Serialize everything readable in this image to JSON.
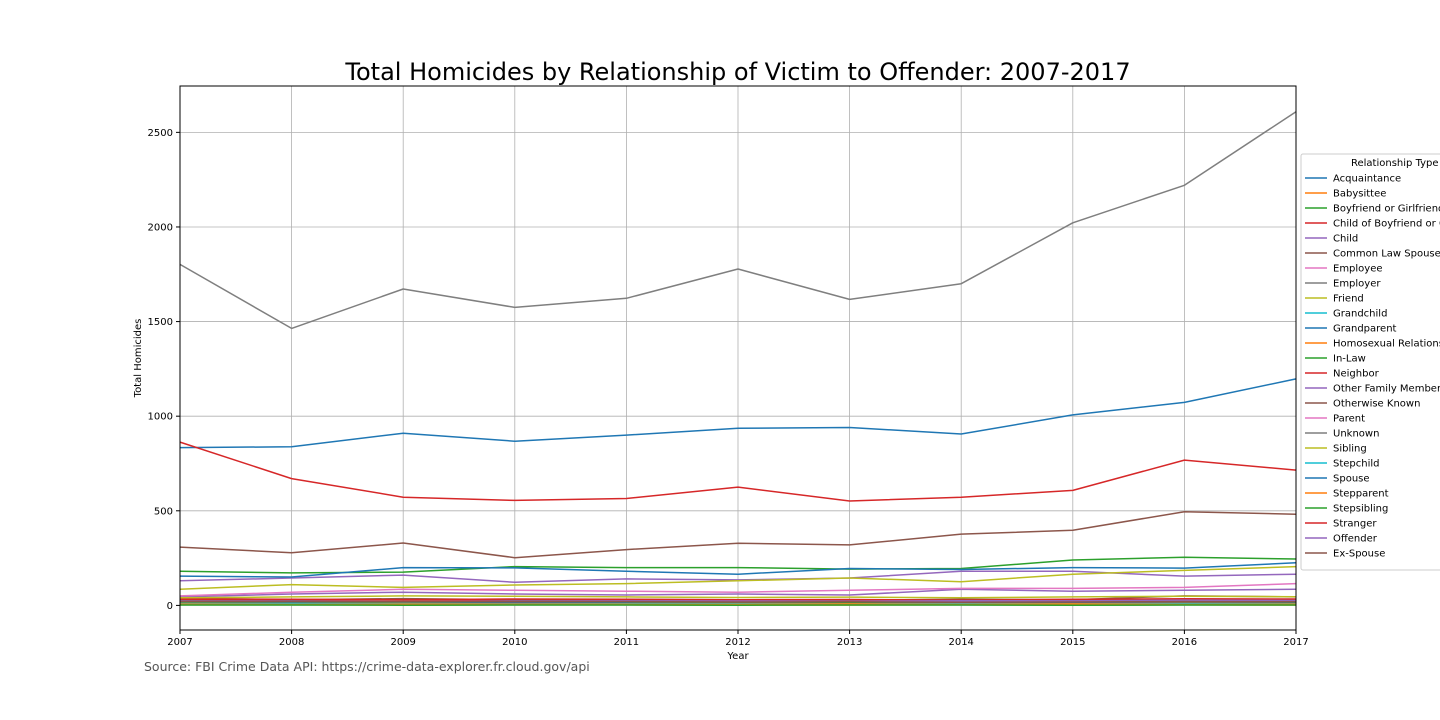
{
  "chart_data": {
    "type": "line",
    "title": "Total Homicides by Relationship of Victim to Offender: 2007-2017",
    "xlabel": "Year",
    "ylabel": "Total Homicides",
    "x": [
      2007,
      2008,
      2009,
      2010,
      2011,
      2012,
      2013,
      2014,
      2015,
      2016,
      2017
    ],
    "xticks": [
      "2007",
      "2008",
      "2009",
      "2010",
      "2011",
      "2012",
      "2013",
      "2014",
      "2015",
      "2016",
      "2017"
    ],
    "yticks": [
      "0",
      "500",
      "1000",
      "1500",
      "2000",
      "2500"
    ],
    "xlim": [
      2007,
      2017
    ],
    "ylim": [
      -130,
      2745
    ],
    "grid": true,
    "legend_title": "Relationship Type",
    "legend_position": "right",
    "series": [
      {
        "name": "Acquaintance",
        "color": "#1f77b4",
        "values": [
          834,
          838,
          910,
          868,
          900,
          936,
          940,
          906,
          1007,
          1073,
          1197
        ]
      },
      {
        "name": "Babysittee",
        "color": "#ff7f0e",
        "values": [
          3,
          4,
          2,
          3,
          3,
          2,
          2,
          3,
          2,
          3,
          2
        ]
      },
      {
        "name": "Boyfriend or Girlfriend",
        "color": "#2ca02c",
        "values": [
          180,
          172,
          176,
          205,
          200,
          200,
          192,
          195,
          240,
          255,
          245
        ]
      },
      {
        "name": "Child of Boyfriend or Girlfriend",
        "color": "#d62728",
        "values": [
          30,
          28,
          30,
          27,
          28,
          26,
          25,
          24,
          30,
          28,
          32
        ]
      },
      {
        "name": "Child",
        "color": "#9467bd",
        "values": [
          130,
          145,
          160,
          122,
          140,
          135,
          145,
          180,
          180,
          155,
          165
        ]
      },
      {
        "name": "Common Law Spouse",
        "color": "#8c564b",
        "values": [
          38,
          30,
          36,
          30,
          32,
          30,
          28,
          32,
          30,
          50,
          45
        ]
      },
      {
        "name": "Employee",
        "color": "#e377c2",
        "values": [
          5,
          4,
          4,
          3,
          4,
          4,
          3,
          4,
          5,
          6,
          4
        ]
      },
      {
        "name": "Employer",
        "color": "#7f7f7f",
        "values": [
          4,
          3,
          3,
          4,
          3,
          3,
          4,
          3,
          4,
          3,
          4
        ]
      },
      {
        "name": "Friend",
        "color": "#bcbd22",
        "values": [
          85,
          110,
          95,
          108,
          115,
          130,
          145,
          125,
          165,
          185,
          205
        ]
      },
      {
        "name": "Grandchild",
        "color": "#17becf",
        "values": [
          15,
          14,
          16,
          15,
          14,
          13,
          15,
          16,
          14,
          15,
          16
        ]
      },
      {
        "name": "Grandparent",
        "color": "#1f77b4",
        "values": [
          12,
          10,
          11,
          13,
          12,
          11,
          10,
          12,
          11,
          13,
          12
        ]
      },
      {
        "name": "Homosexual Relationship",
        "color": "#ff7f0e",
        "values": [
          10,
          9,
          10,
          8,
          9,
          10,
          9,
          8,
          9,
          10,
          9
        ]
      },
      {
        "name": "In-Law",
        "color": "#2ca02c",
        "values": [
          20,
          19,
          18,
          20,
          19,
          18,
          17,
          18,
          19,
          20,
          18
        ]
      },
      {
        "name": "Neighbor",
        "color": "#d62728",
        "values": [
          35,
          33,
          30,
          34,
          32,
          30,
          31,
          28,
          33,
          35,
          34
        ]
      },
      {
        "name": "Other Family Member",
        "color": "#9467bd",
        "values": [
          45,
          60,
          70,
          60,
          55,
          60,
          55,
          85,
          75,
          80,
          85
        ]
      },
      {
        "name": "Otherwise Known",
        "color": "#8c564b",
        "values": [
          308,
          278,
          330,
          252,
          295,
          328,
          320,
          377,
          397,
          495,
          482
        ]
      },
      {
        "name": "Parent",
        "color": "#e377c2",
        "values": [
          50,
          70,
          85,
          80,
          75,
          70,
          80,
          90,
          90,
          95,
          115
        ]
      },
      {
        "name": "Unknown",
        "color": "#7f7f7f",
        "values": [
          1802,
          1464,
          1672,
          1575,
          1623,
          1778,
          1617,
          1700,
          2022,
          2220,
          2609
        ]
      },
      {
        "name": "Sibling",
        "color": "#bcbd22",
        "values": [
          40,
          45,
          50,
          48,
          45,
          42,
          44,
          40,
          45,
          48,
          46
        ]
      },
      {
        "name": "Stepchild",
        "color": "#17becf",
        "values": [
          8,
          9,
          8,
          7,
          9,
          8,
          7,
          8,
          7,
          9,
          8
        ]
      },
      {
        "name": "Spouse",
        "color": "#1f77b4",
        "values": [
          155,
          150,
          200,
          198,
          180,
          165,
          195,
          190,
          200,
          197,
          225
        ]
      },
      {
        "name": "Stepparent",
        "color": "#ff7f0e",
        "values": [
          6,
          5,
          6,
          5,
          6,
          5,
          6,
          5,
          6,
          5,
          6
        ]
      },
      {
        "name": "Stepsibling",
        "color": "#2ca02c",
        "values": [
          2,
          2,
          1,
          2,
          2,
          1,
          2,
          2,
          1,
          2,
          2
        ]
      },
      {
        "name": "Stranger",
        "color": "#d62728",
        "values": [
          863,
          670,
          572,
          555,
          565,
          625,
          552,
          572,
          608,
          768,
          715
        ]
      },
      {
        "name": "Offender",
        "color": "#9467bd",
        "values": [
          25,
          22,
          20,
          22,
          24,
          23,
          22,
          25,
          24,
          28,
          26
        ]
      },
      {
        "name": "Ex-Spouse",
        "color": "#8c564b",
        "values": [
          22,
          20,
          21,
          19,
          20,
          18,
          19,
          17,
          18,
          20,
          19
        ]
      }
    ]
  },
  "source": "Source: FBI Crime Data API: https://crime-data-explorer.fr.cloud.gov/api"
}
